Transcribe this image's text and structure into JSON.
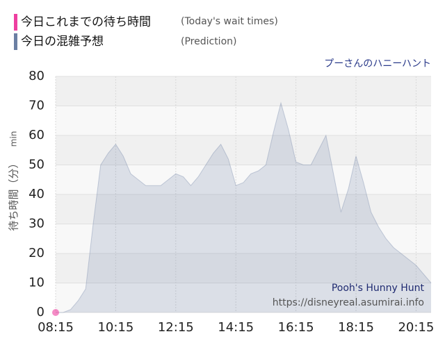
{
  "chart_data": {
    "type": "area",
    "title": "プーさんのハニーハント",
    "legend_notes": [
      "(Today's wait times)",
      "(Prediction)"
    ],
    "y_label": "待ち時間（分）",
    "y_unit": "min",
    "watermark": [
      "Pooh's Hunny Hunt",
      "https://disneyreal.asumirai.info"
    ],
    "xlim": [
      495,
      1245
    ],
    "xticks": [
      {
        "value": 495,
        "label": "08:15"
      },
      {
        "value": 615,
        "label": "10:15"
      },
      {
        "value": 735,
        "label": "12:15"
      },
      {
        "value": 855,
        "label": "14:15"
      },
      {
        "value": 975,
        "label": "16:15"
      },
      {
        "value": 1095,
        "label": "18:15"
      },
      {
        "value": 1215,
        "label": "20:15"
      }
    ],
    "ylim": [
      0,
      80
    ],
    "yticks": [
      0,
      10,
      20,
      30,
      40,
      50,
      60,
      70,
      80
    ],
    "grid": true,
    "series": [
      {
        "name": "今日これまでの待ち時間",
        "color": "#ee3fa0",
        "kind": "points",
        "x": [
          495
        ],
        "values": [
          0
        ]
      },
      {
        "name": "今日の混雑予想",
        "color": "#6b7fa3",
        "kind": "area",
        "x": [
          495,
          510,
          525,
          540,
          555,
          570,
          585,
          600,
          615,
          630,
          645,
          660,
          675,
          690,
          705,
          720,
          735,
          750,
          765,
          780,
          795,
          810,
          825,
          840,
          855,
          870,
          885,
          900,
          915,
          930,
          945,
          960,
          975,
          990,
          1005,
          1020,
          1035,
          1050,
          1065,
          1080,
          1095,
          1110,
          1125,
          1140,
          1155,
          1170,
          1185,
          1200,
          1215,
          1230,
          1245
        ],
        "values": [
          0,
          0,
          1,
          4,
          8,
          30,
          50,
          54,
          57,
          53,
          47,
          45,
          43,
          43,
          43,
          45,
          47,
          46,
          43,
          46,
          50,
          54,
          57,
          52,
          43,
          44,
          47,
          48,
          50,
          61,
          71,
          62,
          51,
          50,
          50,
          55,
          60,
          47,
          34,
          42,
          53,
          44,
          34,
          29,
          25,
          22,
          20,
          18,
          16,
          13,
          10
        ]
      }
    ]
  }
}
